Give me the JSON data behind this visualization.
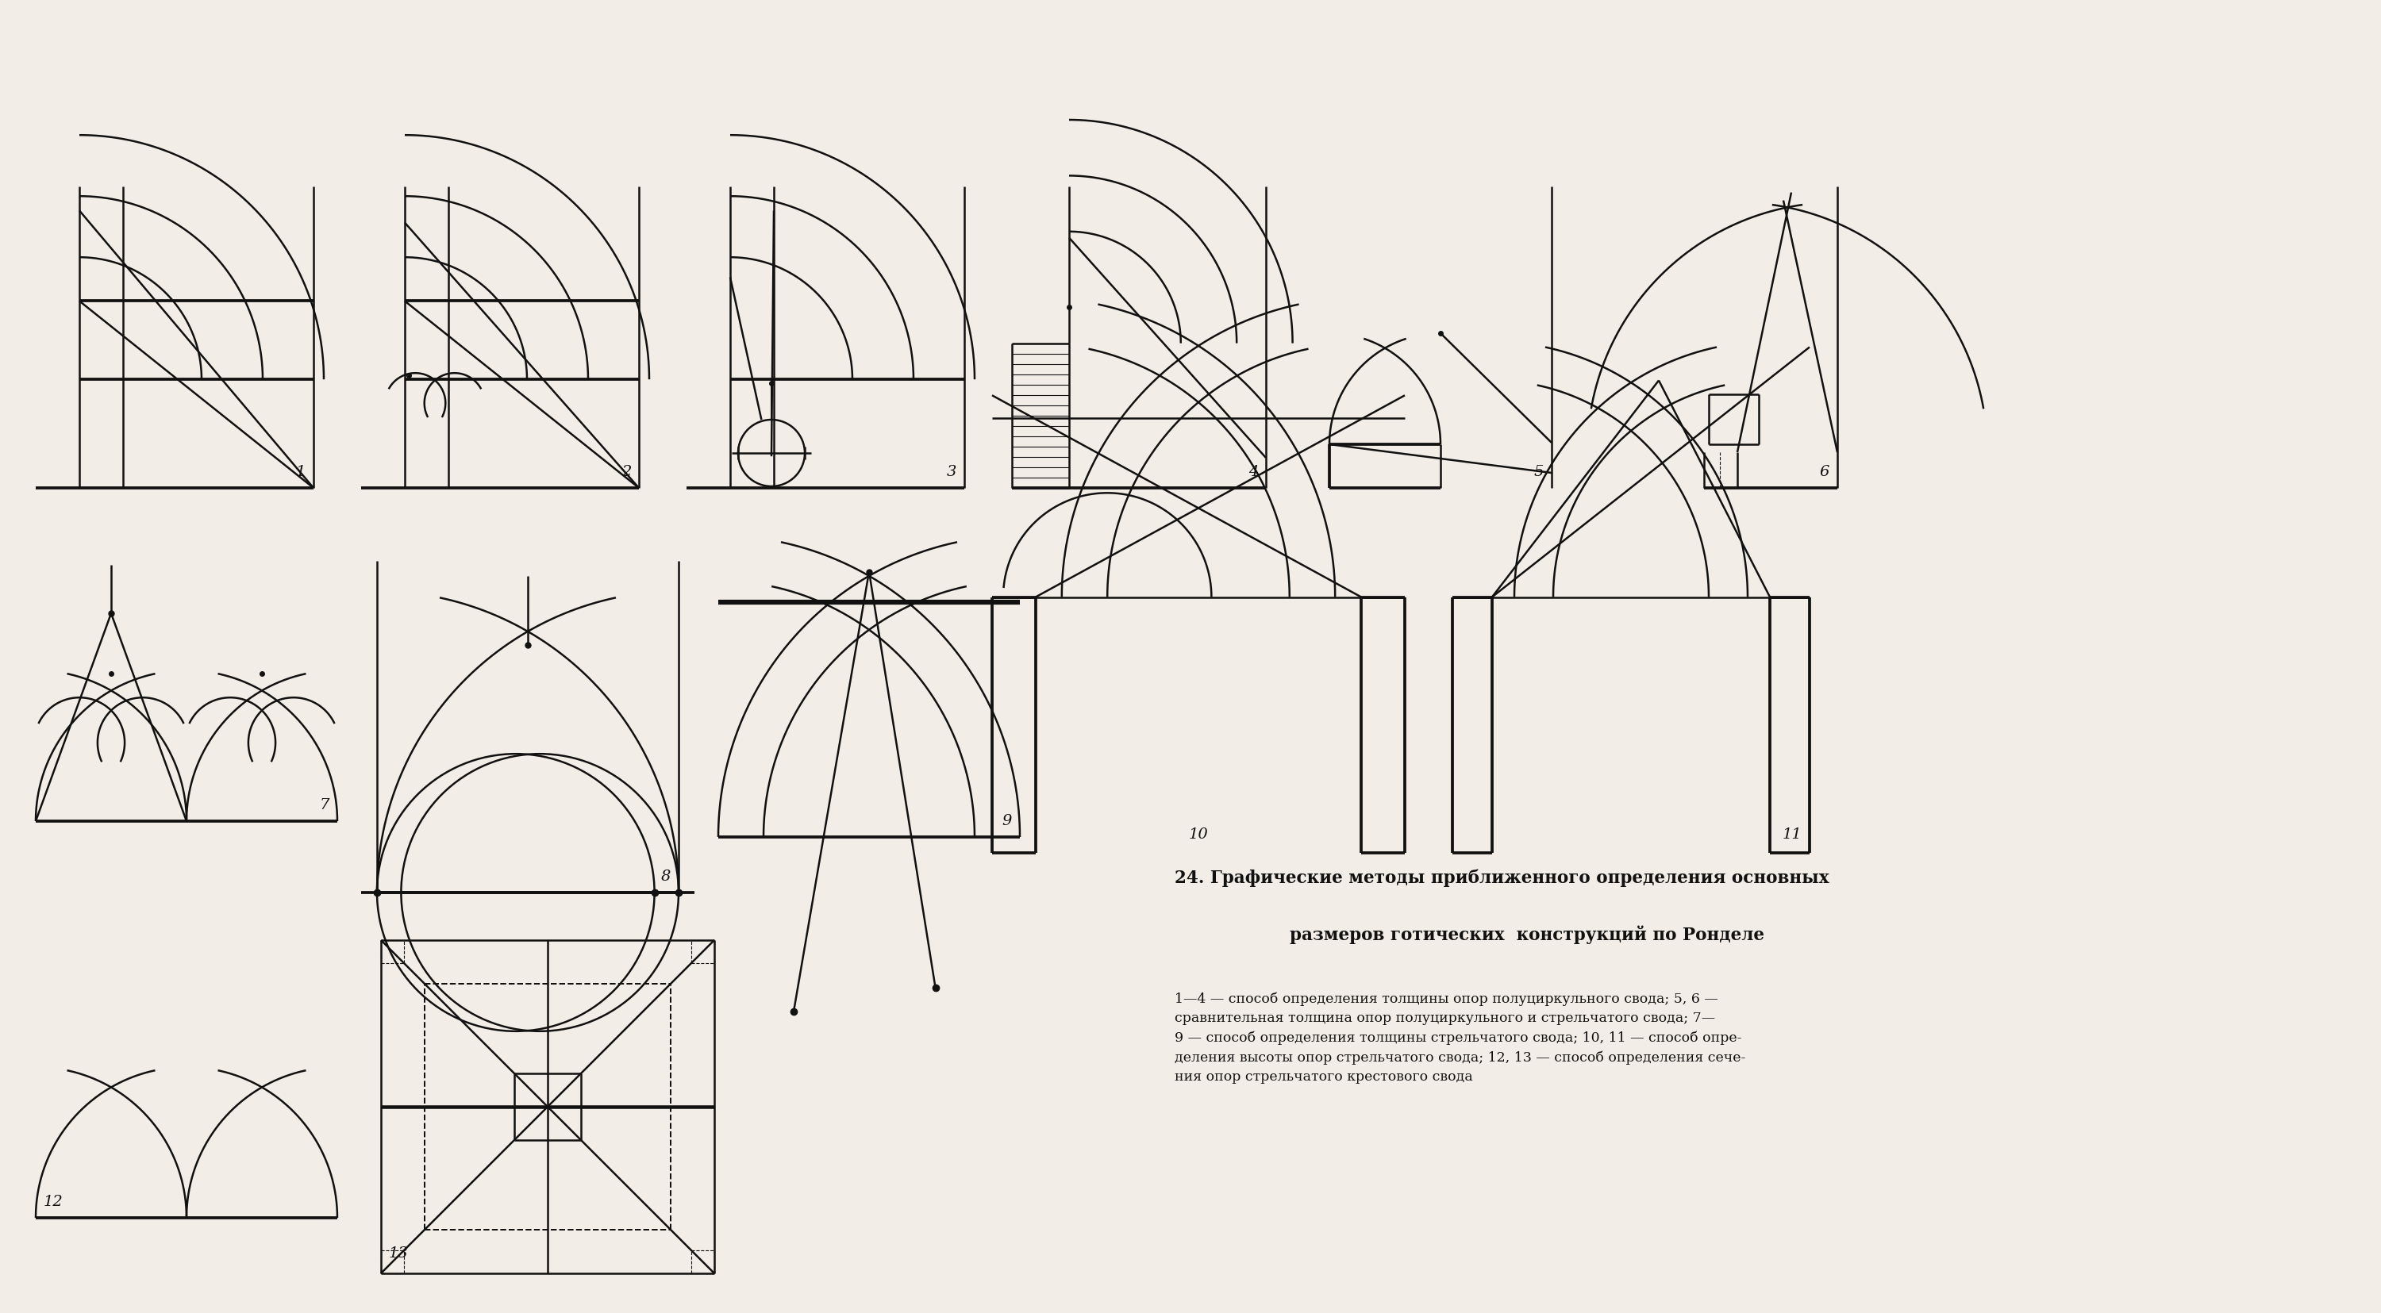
{
  "title_line1": "24. Графические методы приближенного определения основных",
  "title_line2": "размеров готических  конструкций по Ронделе",
  "caption": "1—4 — способ определения толщины опор полуциркульного свода; 5, 6 —\nсравнительная толщина опор полуциркульного и стрельчатого свода; 7—\n9 — способ определения толщины стрельчатого свода; 10, 11 — способ опре-\nделения высоты опор стрельчатого свода; 12, 13 — способ определения сече-\nния опор стрельчатого крестового свода",
  "bg_color": "#f2ede6",
  "line_color": "#111111",
  "lw": 1.8
}
